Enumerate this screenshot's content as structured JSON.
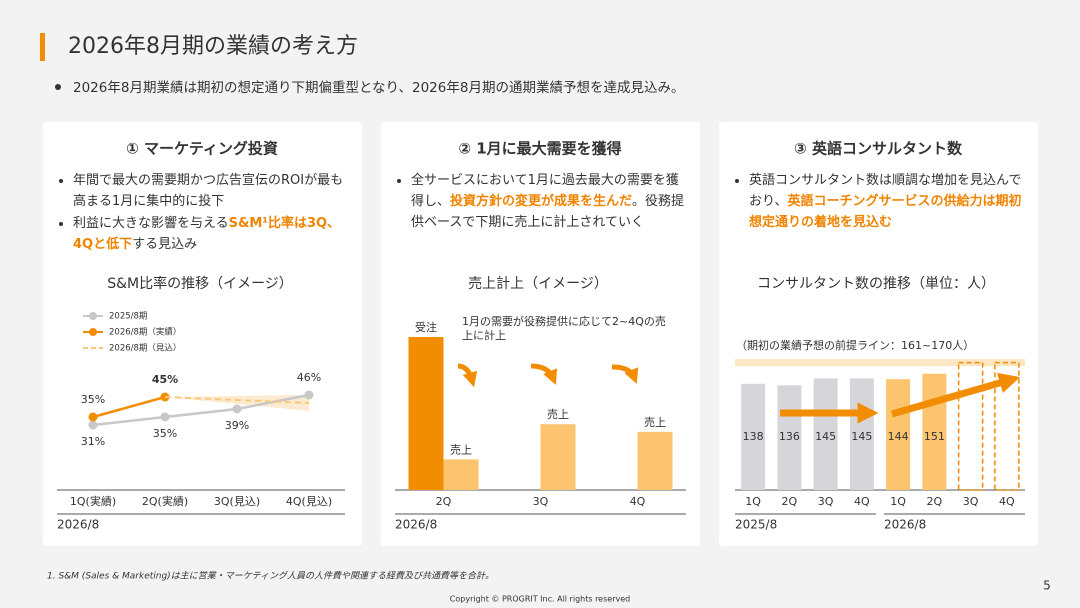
{
  "header": {
    "title": "2026年8月期の業績の考え方",
    "bullet": "2026年8月期業績は期初の想定通り下期偏重型となり、2026年8月期の通期業績予想を達成見込み。"
  },
  "panels": [
    {
      "title": "① マーケティング投資",
      "bullets": [
        {
          "parts": [
            "年間で最大の需要期かつ広告宣伝のROIが最も高まる1月に集中的に投下"
          ]
        },
        {
          "parts": [
            "利益に大きな影響を与える",
            "S&M¹比率は3Q、4Qと低下",
            "する見込み"
          ],
          "emphasis": [
            1
          ]
        }
      ]
    },
    {
      "title": "② 1月に最大需要を獲得",
      "bullets": [
        {
          "parts": [
            "全サービスにおいて1月に過去最大の需要を獲得し、",
            "投資方針の変更が成果を生んだ",
            "。役務提供ベースで下期に売上に計上されていく"
          ],
          "emphasis": [
            1
          ]
        }
      ]
    },
    {
      "title": "③ 英語コンサルタント数",
      "bullets": [
        {
          "parts": [
            "英語コンサルタント数は順調な増加を見込んでおり、",
            "英語コーチングサービスの供給力は期初想定通りの着地を見込む"
          ],
          "emphasis": [
            1
          ]
        }
      ]
    }
  ],
  "chart_data": [
    {
      "type": "line",
      "title": "S&M比率の推移（イメージ）",
      "categories": [
        "1Q(実績)",
        "2Q(実績)",
        "3Q(見込)",
        "4Q(見込)"
      ],
      "group_label": "2026/8",
      "series": [
        {
          "name": "2025/8期",
          "color": "#c8c8c8",
          "values": [
            31,
            35,
            39,
            46
          ],
          "value_labels": [
            "31%",
            "35%",
            "39%",
            "46%"
          ]
        },
        {
          "name": "2026/8期（実績）",
          "color": "#f28c00",
          "values": [
            35,
            45,
            null,
            null
          ],
          "value_labels": [
            "35%",
            "45%",
            null,
            null
          ]
        },
        {
          "name": "2026/8期（見込）",
          "color": "#f9c77a",
          "dashed": true,
          "values": [
            null,
            45,
            43.5,
            42
          ]
        }
      ]
    },
    {
      "type": "bar",
      "title": "売上計上（イメージ）",
      "categories": [
        "2Q",
        "3Q",
        "4Q"
      ],
      "group_label": "2026/8",
      "annotation": "1月の需要が役務提供に応じて2~4Qの売上に計上",
      "series": [
        {
          "name": "受注",
          "color": "#f28c00",
          "values": [
            100,
            null,
            null
          ]
        },
        {
          "name": "売上",
          "color": "#fcc46e",
          "values": [
            20,
            43,
            38
          ]
        }
      ]
    },
    {
      "type": "bar",
      "title": "コンサルタント数の推移（単位：人）",
      "categories": [
        "1Q",
        "2Q",
        "3Q",
        "4Q",
        "1Q",
        "2Q",
        "3Q",
        "4Q"
      ],
      "values": [
        138,
        136,
        145,
        145,
        144,
        151,
        null,
        null
      ],
      "groups": [
        {
          "label": "2025/8",
          "count": 4,
          "color": "#d6d6da"
        },
        {
          "label": "2026/8",
          "count": 4,
          "color": "#fcc46e"
        }
      ],
      "band": {
        "range": [
          161,
          170
        ],
        "label": "（期初の業績予想の前提ライン：161~170人）",
        "color": "#fde6c2"
      }
    }
  ],
  "footnote": "1.  S&M (Sales & Marketing)は主に営業・マーケティング人員の人件費や関連する経費及び共通費等を合計。",
  "page_number": "5",
  "copyright": "Copyright © PROGRIT Inc. All rights reserved"
}
